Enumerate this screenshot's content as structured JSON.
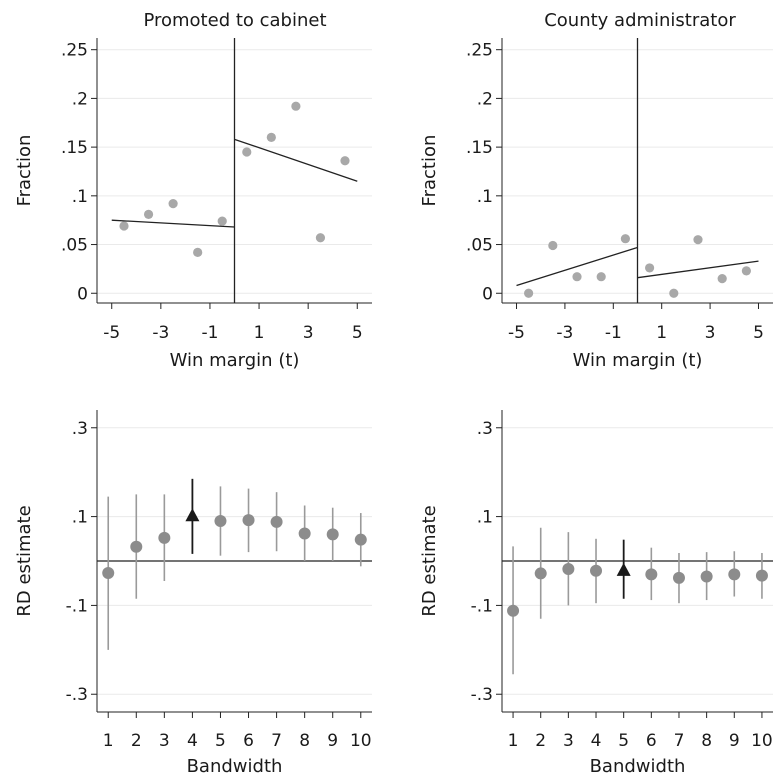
{
  "chart_data": [
    {
      "type": "scatter",
      "title": "Promoted to cabinet",
      "xlabel": "Win margin (t)",
      "ylabel": "Fraction",
      "xlim": [
        -5.6,
        5.6
      ],
      "ylim": [
        -0.01,
        0.262
      ],
      "xticks": [
        -5,
        -3,
        -1,
        1,
        3,
        5
      ],
      "xtick_labels": [
        "-5",
        "-3",
        "-1",
        "1",
        "3",
        "5"
      ],
      "yticks": [
        0,
        0.05,
        0.1,
        0.15,
        0.2,
        0.25
      ],
      "ytick_labels": [
        "0",
        ".05",
        ".1",
        ".15",
        ".2",
        ".25"
      ],
      "grid": true,
      "cutoff": 0,
      "points": [
        {
          "x": -4.5,
          "y": 0.069
        },
        {
          "x": -3.5,
          "y": 0.081
        },
        {
          "x": -2.5,
          "y": 0.092
        },
        {
          "x": -1.5,
          "y": 0.042
        },
        {
          "x": -0.5,
          "y": 0.074
        },
        {
          "x": 0.5,
          "y": 0.145
        },
        {
          "x": 1.5,
          "y": 0.16
        },
        {
          "x": 2.5,
          "y": 0.192
        },
        {
          "x": 3.5,
          "y": 0.057
        },
        {
          "x": 4.5,
          "y": 0.136
        }
      ],
      "fit_lines": [
        {
          "x": [
            -5,
            0
          ],
          "y": [
            0.075,
            0.068
          ]
        },
        {
          "x": [
            0,
            5
          ],
          "y": [
            0.158,
            0.115
          ]
        }
      ]
    },
    {
      "type": "scatter",
      "title": "County administrator",
      "xlabel": "Win margin (t)",
      "ylabel": "Fraction",
      "xlim": [
        -5.6,
        5.6
      ],
      "ylim": [
        -0.01,
        0.262
      ],
      "xticks": [
        -5,
        -3,
        -1,
        1,
        3,
        5
      ],
      "xtick_labels": [
        "-5",
        "-3",
        "-1",
        "1",
        "3",
        "5"
      ],
      "yticks": [
        0,
        0.05,
        0.1,
        0.15,
        0.2,
        0.25
      ],
      "ytick_labels": [
        "0",
        ".05",
        ".1",
        ".15",
        ".2",
        ".25"
      ],
      "grid": true,
      "cutoff": 0,
      "points": [
        {
          "x": -4.5,
          "y": 0.0
        },
        {
          "x": -3.5,
          "y": 0.049
        },
        {
          "x": -2.5,
          "y": 0.017
        },
        {
          "x": -1.5,
          "y": 0.017
        },
        {
          "x": -0.5,
          "y": 0.056
        },
        {
          "x": 0.5,
          "y": 0.026
        },
        {
          "x": 1.5,
          "y": 0.0
        },
        {
          "x": 2.5,
          "y": 0.055
        },
        {
          "x": 3.5,
          "y": 0.015
        },
        {
          "x": 4.5,
          "y": 0.023
        }
      ],
      "fit_lines": [
        {
          "x": [
            -5,
            0
          ],
          "y": [
            0.008,
            0.047
          ]
        },
        {
          "x": [
            0,
            5
          ],
          "y": [
            0.016,
            0.033
          ]
        }
      ]
    },
    {
      "type": "scatter",
      "title": "",
      "xlabel": "Bandwidth",
      "ylabel": "RD estimate",
      "xlim": [
        0.6,
        10.4
      ],
      "ylim": [
        -0.34,
        0.34
      ],
      "xticks": [
        1,
        2,
        3,
        4,
        5,
        6,
        7,
        8,
        9,
        10
      ],
      "xtick_labels": [
        "1",
        "2",
        "3",
        "4",
        "5",
        "6",
        "7",
        "8",
        "9",
        "10"
      ],
      "yticks": [
        -0.3,
        -0.1,
        0.1,
        0.3
      ],
      "ytick_labels": [
        "-.3",
        "-.1",
        ".1",
        ".3"
      ],
      "grid": true,
      "reference_y": 0,
      "highlight_bandwidth": 4,
      "estimates": [
        {
          "x": 1,
          "y": -0.027,
          "lo": -0.2,
          "hi": 0.145
        },
        {
          "x": 2,
          "y": 0.032,
          "lo": -0.085,
          "hi": 0.15
        },
        {
          "x": 3,
          "y": 0.052,
          "lo": -0.045,
          "hi": 0.15
        },
        {
          "x": 4,
          "y": 0.103,
          "lo": 0.016,
          "hi": 0.185
        },
        {
          "x": 5,
          "y": 0.09,
          "lo": 0.012,
          "hi": 0.168
        },
        {
          "x": 6,
          "y": 0.092,
          "lo": 0.02,
          "hi": 0.163
        },
        {
          "x": 7,
          "y": 0.088,
          "lo": 0.022,
          "hi": 0.155
        },
        {
          "x": 8,
          "y": 0.062,
          "lo": 0.0,
          "hi": 0.125
        },
        {
          "x": 9,
          "y": 0.06,
          "lo": 0.0,
          "hi": 0.12
        },
        {
          "x": 10,
          "y": 0.048,
          "lo": -0.012,
          "hi": 0.108
        }
      ]
    },
    {
      "type": "scatter",
      "title": "",
      "xlabel": "Bandwidth",
      "ylabel": "RD estimate",
      "xlim": [
        0.6,
        10.4
      ],
      "ylim": [
        -0.34,
        0.34
      ],
      "xticks": [
        1,
        2,
        3,
        4,
        5,
        6,
        7,
        8,
        9,
        10
      ],
      "xtick_labels": [
        "1",
        "2",
        "3",
        "4",
        "5",
        "6",
        "7",
        "8",
        "9",
        "10"
      ],
      "yticks": [
        -0.3,
        -0.1,
        0.1,
        0.3
      ],
      "ytick_labels": [
        "-.3",
        "-.1",
        ".1",
        ".3"
      ],
      "grid": true,
      "reference_y": 0,
      "highlight_bandwidth": 5,
      "estimates": [
        {
          "x": 1,
          "y": -0.112,
          "lo": -0.255,
          "hi": 0.033
        },
        {
          "x": 2,
          "y": -0.028,
          "lo": -0.13,
          "hi": 0.075
        },
        {
          "x": 3,
          "y": -0.018,
          "lo": -0.1,
          "hi": 0.065
        },
        {
          "x": 4,
          "y": -0.022,
          "lo": -0.095,
          "hi": 0.05
        },
        {
          "x": 5,
          "y": -0.02,
          "lo": -0.085,
          "hi": 0.048
        },
        {
          "x": 6,
          "y": -0.03,
          "lo": -0.088,
          "hi": 0.03
        },
        {
          "x": 7,
          "y": -0.038,
          "lo": -0.095,
          "hi": 0.018
        },
        {
          "x": 8,
          "y": -0.035,
          "lo": -0.088,
          "hi": 0.02
        },
        {
          "x": 9,
          "y": -0.03,
          "lo": -0.08,
          "hi": 0.022
        },
        {
          "x": 10,
          "y": -0.033,
          "lo": -0.085,
          "hi": 0.018
        }
      ]
    }
  ]
}
